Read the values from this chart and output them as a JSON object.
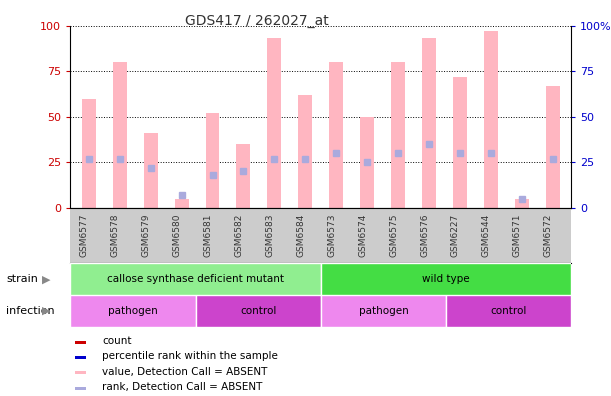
{
  "title": "GDS417 / 262027_at",
  "samples": [
    "GSM6577",
    "GSM6578",
    "GSM6579",
    "GSM6580",
    "GSM6581",
    "GSM6582",
    "GSM6583",
    "GSM6584",
    "GSM6573",
    "GSM6574",
    "GSM6575",
    "GSM6576",
    "GSM6227",
    "GSM6544",
    "GSM6571",
    "GSM6572"
  ],
  "values_absent": [
    60,
    80,
    41,
    5,
    52,
    35,
    93,
    62,
    80,
    50,
    80,
    93,
    72,
    97,
    5,
    67
  ],
  "ranks_absent": [
    27,
    27,
    22,
    7,
    18,
    20,
    27,
    27,
    30,
    25,
    30,
    35,
    30,
    30,
    5,
    27
  ],
  "ylim": [
    0,
    100
  ],
  "yticks": [
    0,
    25,
    50,
    75,
    100
  ],
  "strain_groups": [
    {
      "label": "callose synthase deficient mutant",
      "start": 0,
      "end": 8,
      "color": "#90EE90"
    },
    {
      "label": "wild type",
      "start": 8,
      "end": 16,
      "color": "#44DD44"
    }
  ],
  "infection_groups": [
    {
      "label": "pathogen",
      "start": 0,
      "end": 4,
      "color": "#EE88EE"
    },
    {
      "label": "control",
      "start": 4,
      "end": 8,
      "color": "#CC44CC"
    },
    {
      "label": "pathogen",
      "start": 8,
      "end": 12,
      "color": "#EE88EE"
    },
    {
      "label": "control",
      "start": 12,
      "end": 16,
      "color": "#CC44CC"
    }
  ],
  "absent_bar_color": "#FFB6C1",
  "absent_rank_color": "#AAAADD",
  "legend_items": [
    {
      "label": "count",
      "color": "#CC0000"
    },
    {
      "label": "percentile rank within the sample",
      "color": "#0000CC"
    },
    {
      "label": "value, Detection Call = ABSENT",
      "color": "#FFB6C1"
    },
    {
      "label": "rank, Detection Call = ABSENT",
      "color": "#AAAADD"
    }
  ],
  "left_axis_color": "#CC0000",
  "right_axis_color": "#0000CC",
  "xtick_bg_color": "#CCCCCC",
  "spine_color": "#000000"
}
